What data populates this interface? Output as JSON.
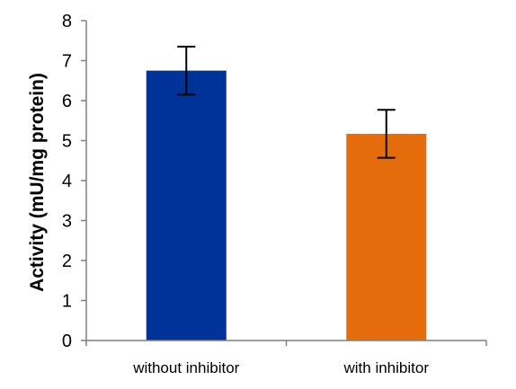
{
  "chart_data": {
    "type": "bar",
    "title": "",
    "xlabel": "",
    "ylabel": "Activity  (mU/mg protein)",
    "categories": [
      "without inhibitor",
      "with inhibitor"
    ],
    "values": [
      6.75,
      5.17
    ],
    "error": [
      0.6,
      0.6
    ],
    "colors": [
      "#003399",
      "#e46c0a"
    ],
    "ylim": [
      0,
      8
    ],
    "yticks": [
      "0",
      "1",
      "2",
      "3",
      "4",
      "5",
      "6",
      "7",
      "8"
    ],
    "grid": false,
    "legend": "none"
  }
}
